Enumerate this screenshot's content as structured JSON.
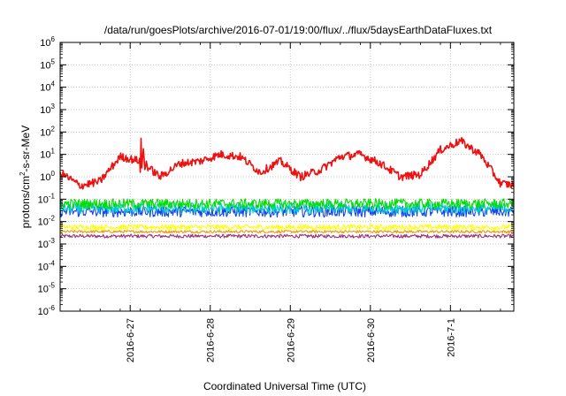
{
  "chart_data": {
    "type": "line",
    "title": "/data/run/goesPlots/archive/2016-07-01/19:00/flux/../flux/5daysEarthDataFluxes.txt",
    "xlabel": "Coordinated Universal Time (UTC)",
    "ylabel": "protons/cm2-s-sr-MeV",
    "ylabel_parts": {
      "pre": "protons/cm",
      "sup": "2",
      "post": "-s-sr-MeV"
    },
    "yscale": "log",
    "ylim_exp": [
      -6,
      6
    ],
    "y_tick_labels": [
      {
        "base": "10",
        "exp": "-6"
      },
      {
        "base": "10",
        "exp": "-5"
      },
      {
        "base": "10",
        "exp": "-4"
      },
      {
        "base": "10",
        "exp": "-3"
      },
      {
        "base": "10",
        "exp": "-2"
      },
      {
        "base": "10",
        "exp": "-1"
      },
      {
        "base": "10",
        "exp": "0"
      },
      {
        "base": "10",
        "exp": "1"
      },
      {
        "base": "10",
        "exp": "2"
      },
      {
        "base": "10",
        "exp": "3"
      },
      {
        "base": "10",
        "exp": "4"
      },
      {
        "base": "10",
        "exp": "5"
      },
      {
        "base": "10",
        "exp": "6"
      }
    ],
    "xlim": [
      "2016-06-26 03:00",
      "2016-07-01 19:00"
    ],
    "x_ticks": [
      "2016-6-27",
      "2016-6-28",
      "2016-6-29",
      "2016-6-30",
      "2016-7-1"
    ],
    "grid": true,
    "series": [
      {
        "color": "#ee1111",
        "x_day": [
          0.0,
          0.25,
          0.5,
          0.75,
          1.0,
          1.25,
          1.5,
          1.75,
          2.0,
          2.25,
          2.5,
          2.75,
          3.0,
          3.25,
          3.5,
          3.75,
          4.0,
          4.25,
          4.5,
          4.75,
          5.0,
          5.25,
          5.5,
          5.75,
          5.93
        ],
        "y_log": [
          0.2,
          -0.4,
          -0.2,
          0.9,
          0.7,
          0.0,
          0.6,
          0.7,
          1.0,
          0.9,
          0.2,
          0.7,
          0.0,
          0.3,
          0.9,
          1.0,
          0.6,
          0.0,
          0.1,
          1.2,
          1.6,
          1.0,
          -0.3,
          -0.4,
          0.7
        ],
        "spike_day": [
          1.0,
          1.01,
          1.02,
          1.04,
          1.06,
          1.08
        ],
        "spike_log": [
          0.0,
          1.8,
          0.4,
          1.3,
          0.2,
          0.8
        ],
        "noise": 0.18
      },
      {
        "color": "#00dd00",
        "base_log": -1.2,
        "noise": 0.22
      },
      {
        "color": "#00cccc",
        "base_log": -1.4,
        "noise": 0.25
      },
      {
        "color": "#1144ee",
        "base_log": -1.55,
        "noise": 0.25
      },
      {
        "color": "#ffff00",
        "base_log": -2.25,
        "noise": 0.12
      },
      {
        "color": "#ee9900",
        "base_log": -2.45,
        "noise": 0.06
      },
      {
        "color": "#993377",
        "base_log": -2.65,
        "noise": 0.08
      }
    ]
  }
}
